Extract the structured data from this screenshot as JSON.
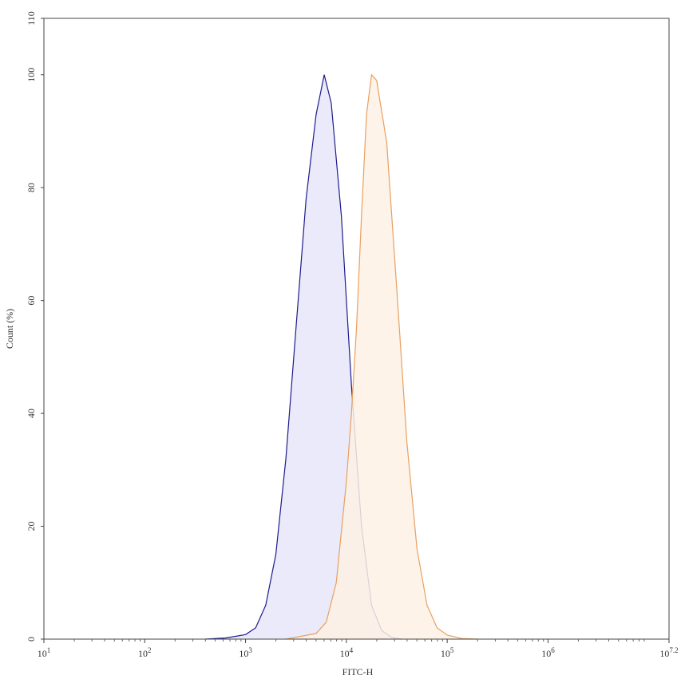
{
  "chart_data": {
    "type": "area",
    "xlabel": "FITC-H",
    "ylabel": "Count  (%)",
    "xscale": "log",
    "xlim": [
      10,
      15848931.92
    ],
    "ylim": [
      0,
      110
    ],
    "xticks": [
      {
        "value": 10,
        "label": "10^1"
      },
      {
        "value": 100,
        "label": "10^2"
      },
      {
        "value": 1000,
        "label": "10^3"
      },
      {
        "value": 10000,
        "label": "10^4"
      },
      {
        "value": 100000,
        "label": "10^5"
      },
      {
        "value": 1000000,
        "label": "10^6"
      },
      {
        "value": 15848931.92,
        "label": "10^7.2"
      }
    ],
    "yticks": [
      0,
      20,
      40,
      60,
      80,
      100,
      110
    ],
    "series": [
      {
        "color": "#1c1c8a",
        "fill": "#e6e6fa",
        "x": [
          398,
          631,
          1000,
          1259,
          1585,
          1995,
          2512,
          3162,
          3981,
          5012,
          6026,
          7079,
          8913,
          11220,
          14125,
          17783,
          22387,
          28184,
          35481
        ],
        "values": [
          0,
          0.2,
          0.8,
          2,
          6,
          15,
          32,
          55,
          78,
          93,
          100,
          95,
          75,
          45,
          20,
          6,
          1.5,
          0.3,
          0
        ]
      },
      {
        "color": "#e8a060",
        "fill": "#fdf1e4",
        "x": [
          2512,
          5012,
          6310,
          7943,
          10000,
          11220,
          12589,
          14125,
          15849,
          17783,
          19953,
          25119,
          31623,
          39811,
          50119,
          63096,
          79433,
          100000,
          141254,
          199526
        ],
        "values": [
          0,
          1,
          3,
          10,
          28,
          40,
          55,
          75,
          93,
          100,
          99,
          88,
          62,
          35,
          16,
          6,
          2,
          0.7,
          0.1,
          0
        ]
      }
    ]
  }
}
